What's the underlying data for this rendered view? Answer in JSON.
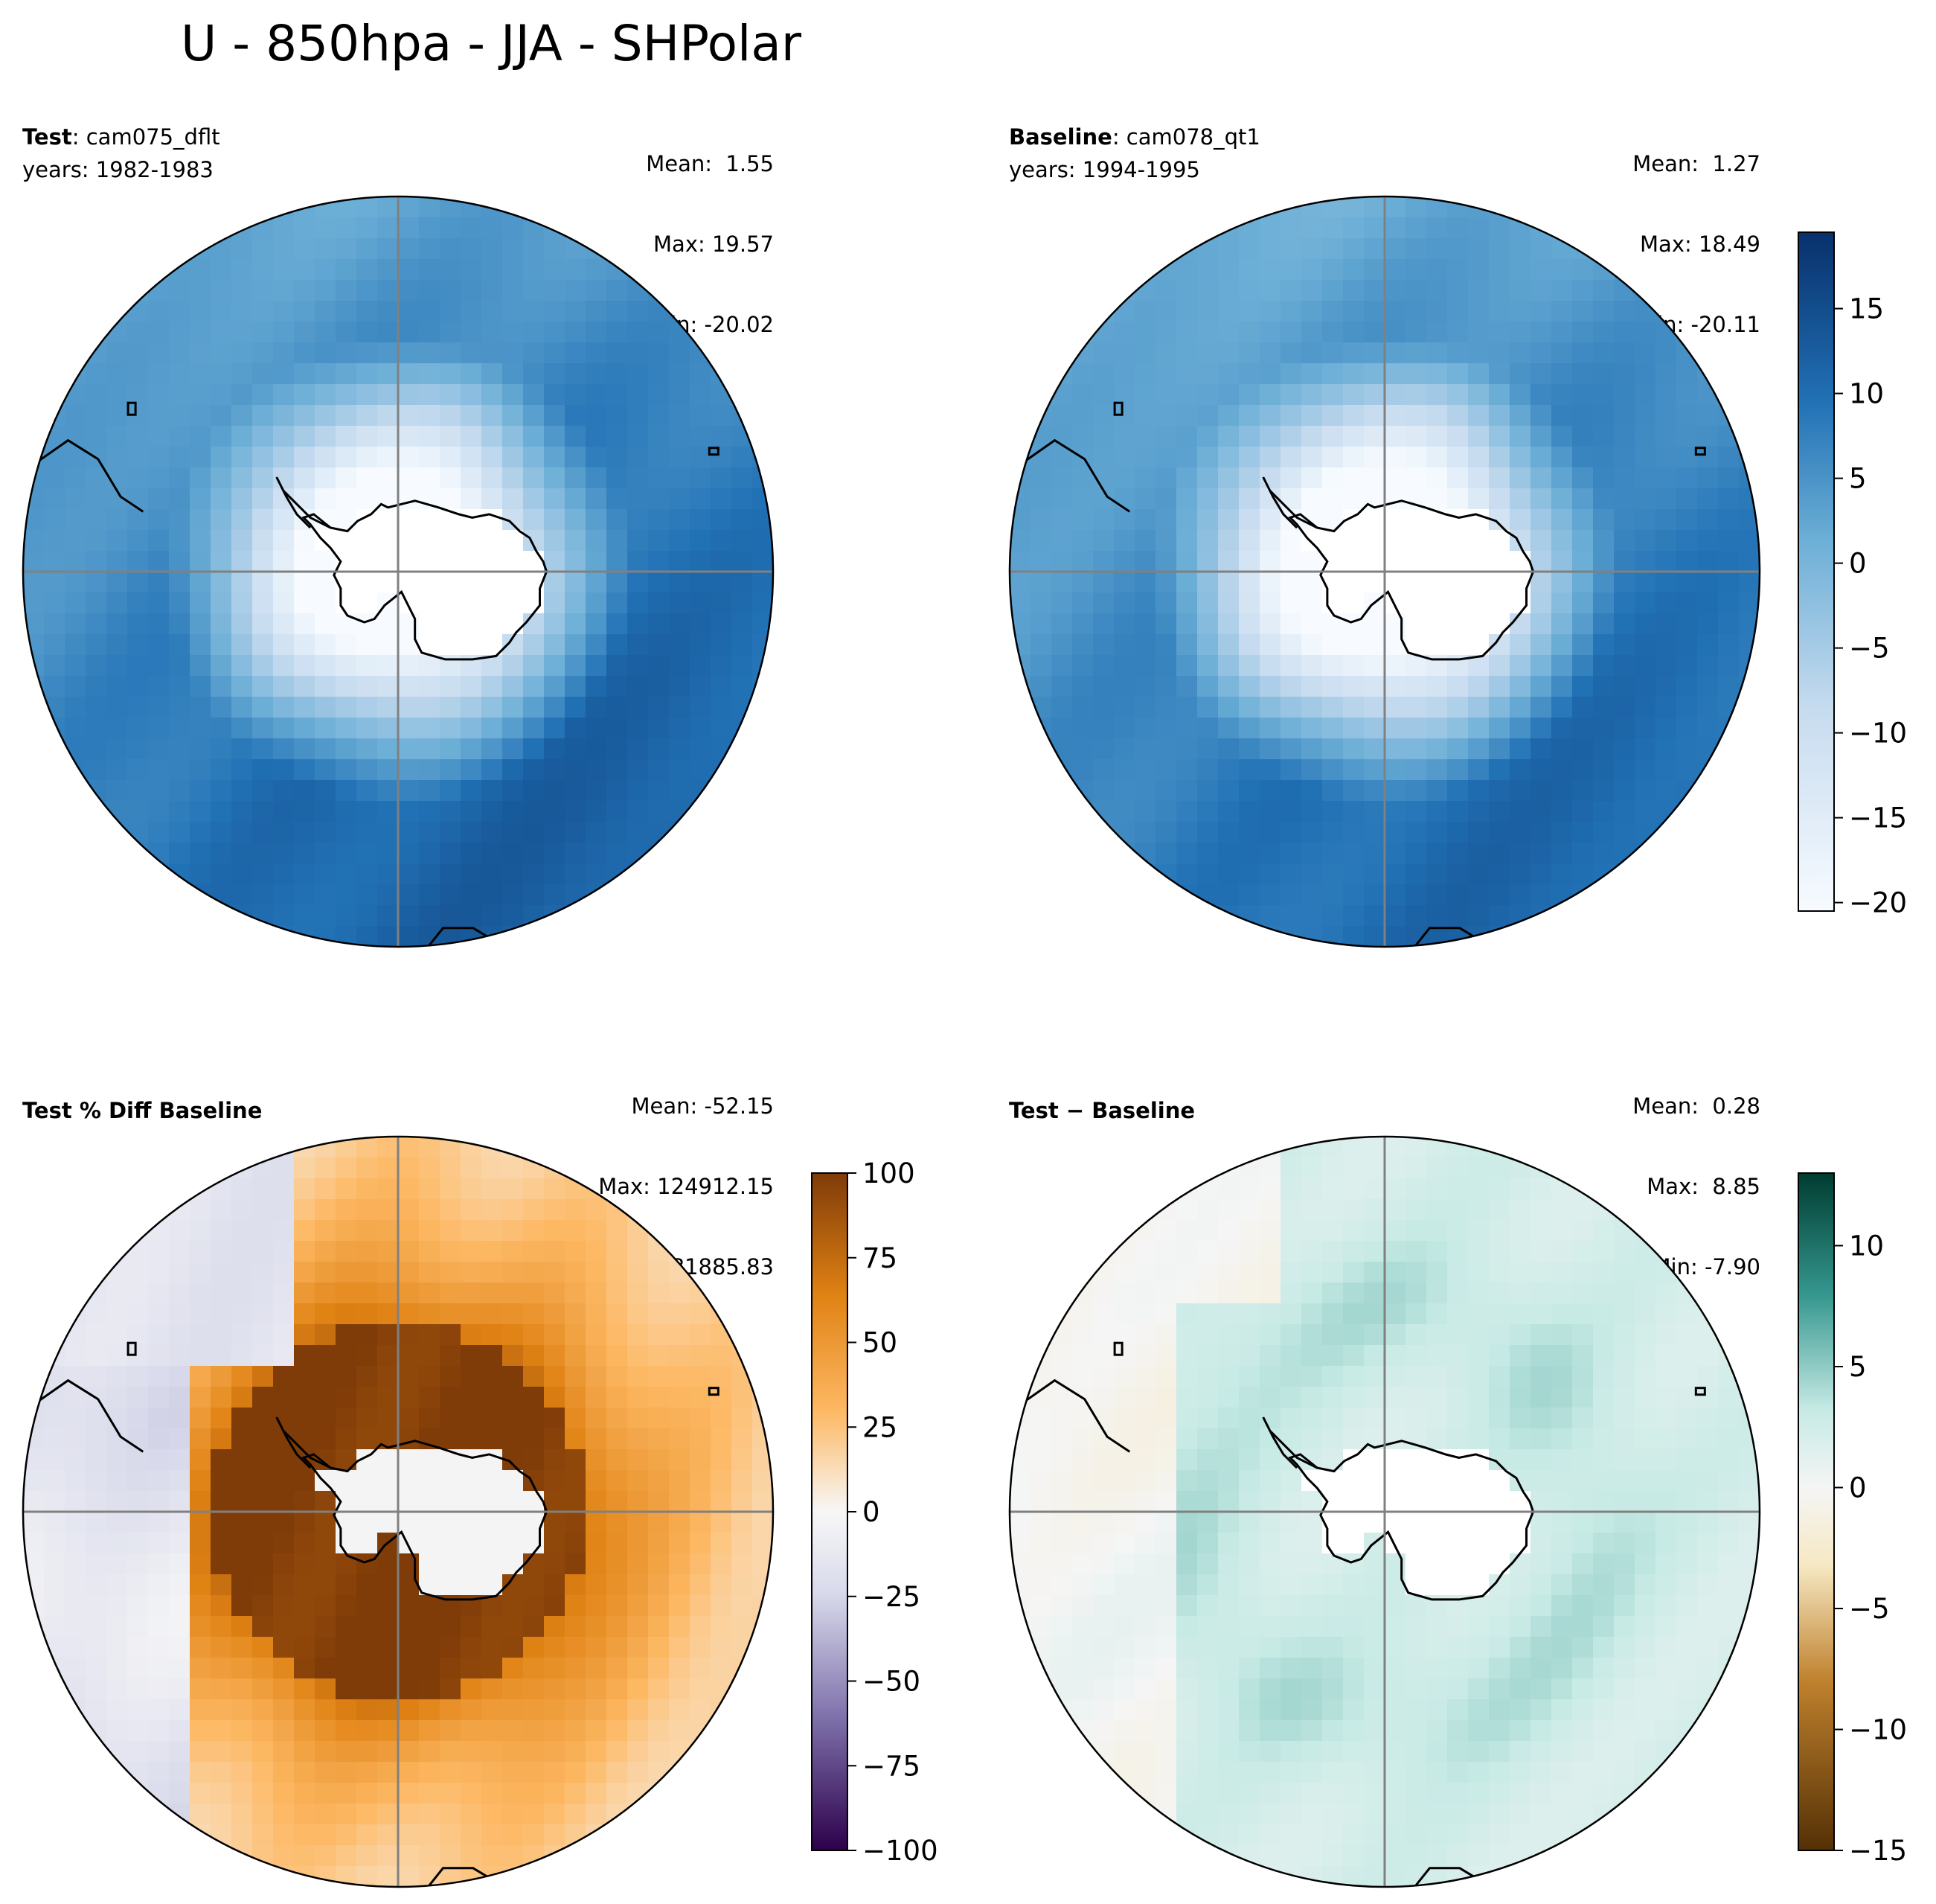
{
  "title": "U - 850hpa - JJA - SHPolar",
  "panels": {
    "test": {
      "label_bold": "Test",
      "label_rest": ": cam075_dflt",
      "years": "years: 1982-1983",
      "mean": "Mean:  1.55",
      "max": "Max: 19.57",
      "min": "Min: -20.02"
    },
    "baseline": {
      "label_bold": "Baseline",
      "label_rest": ": cam078_qt1",
      "years": "years: 1994-1995",
      "mean": "Mean:  1.27",
      "max": "Max: 18.49",
      "min": "Min: -20.11"
    },
    "pctdiff": {
      "label": "Test % Diff Baseline",
      "mean": "Mean: -52.15",
      "max": "Max: 124912.15",
      "min": "Min: -2381885.83"
    },
    "diff": {
      "label": "Test − Baseline",
      "mean": "Mean:  0.28",
      "max": "Max:  8.85",
      "min": "Min: -7.90"
    }
  },
  "colorbars": {
    "top": {
      "ticks": [
        "15",
        "10",
        "5",
        "0",
        "−5",
        "−10",
        "−15",
        "−20"
      ],
      "values": [
        15,
        10,
        5,
        0,
        -5,
        -10,
        -15,
        -20
      ],
      "range": [
        -20.5,
        19.5
      ],
      "colors": [
        "#f7fbff",
        "#c6dbef",
        "#6baed6",
        "#2171b5",
        "#08306b"
      ]
    },
    "pct": {
      "ticks": [
        "100",
        "75",
        "50",
        "25",
        "0",
        "−25",
        "−50",
        "−75",
        "−100"
      ],
      "values": [
        100,
        75,
        50,
        25,
        0,
        -25,
        -50,
        -75,
        -100
      ],
      "range": [
        -100,
        100
      ],
      "colors": [
        "#2d004b",
        "#8073ac",
        "#d8daeb",
        "#f7f7f7",
        "#fdb863",
        "#e08214",
        "#7f3b08"
      ]
    },
    "diff": {
      "ticks": [
        "10",
        "5",
        "0",
        "−5",
        "−10",
        "−15"
      ],
      "values": [
        10,
        5,
        0,
        -5,
        -10,
        -15
      ],
      "range": [
        -15,
        13
      ],
      "colors": [
        "#543005",
        "#bf812d",
        "#f6e8c3",
        "#f5f5f5",
        "#c7eae5",
        "#35978f",
        "#003c30"
      ]
    }
  }
}
